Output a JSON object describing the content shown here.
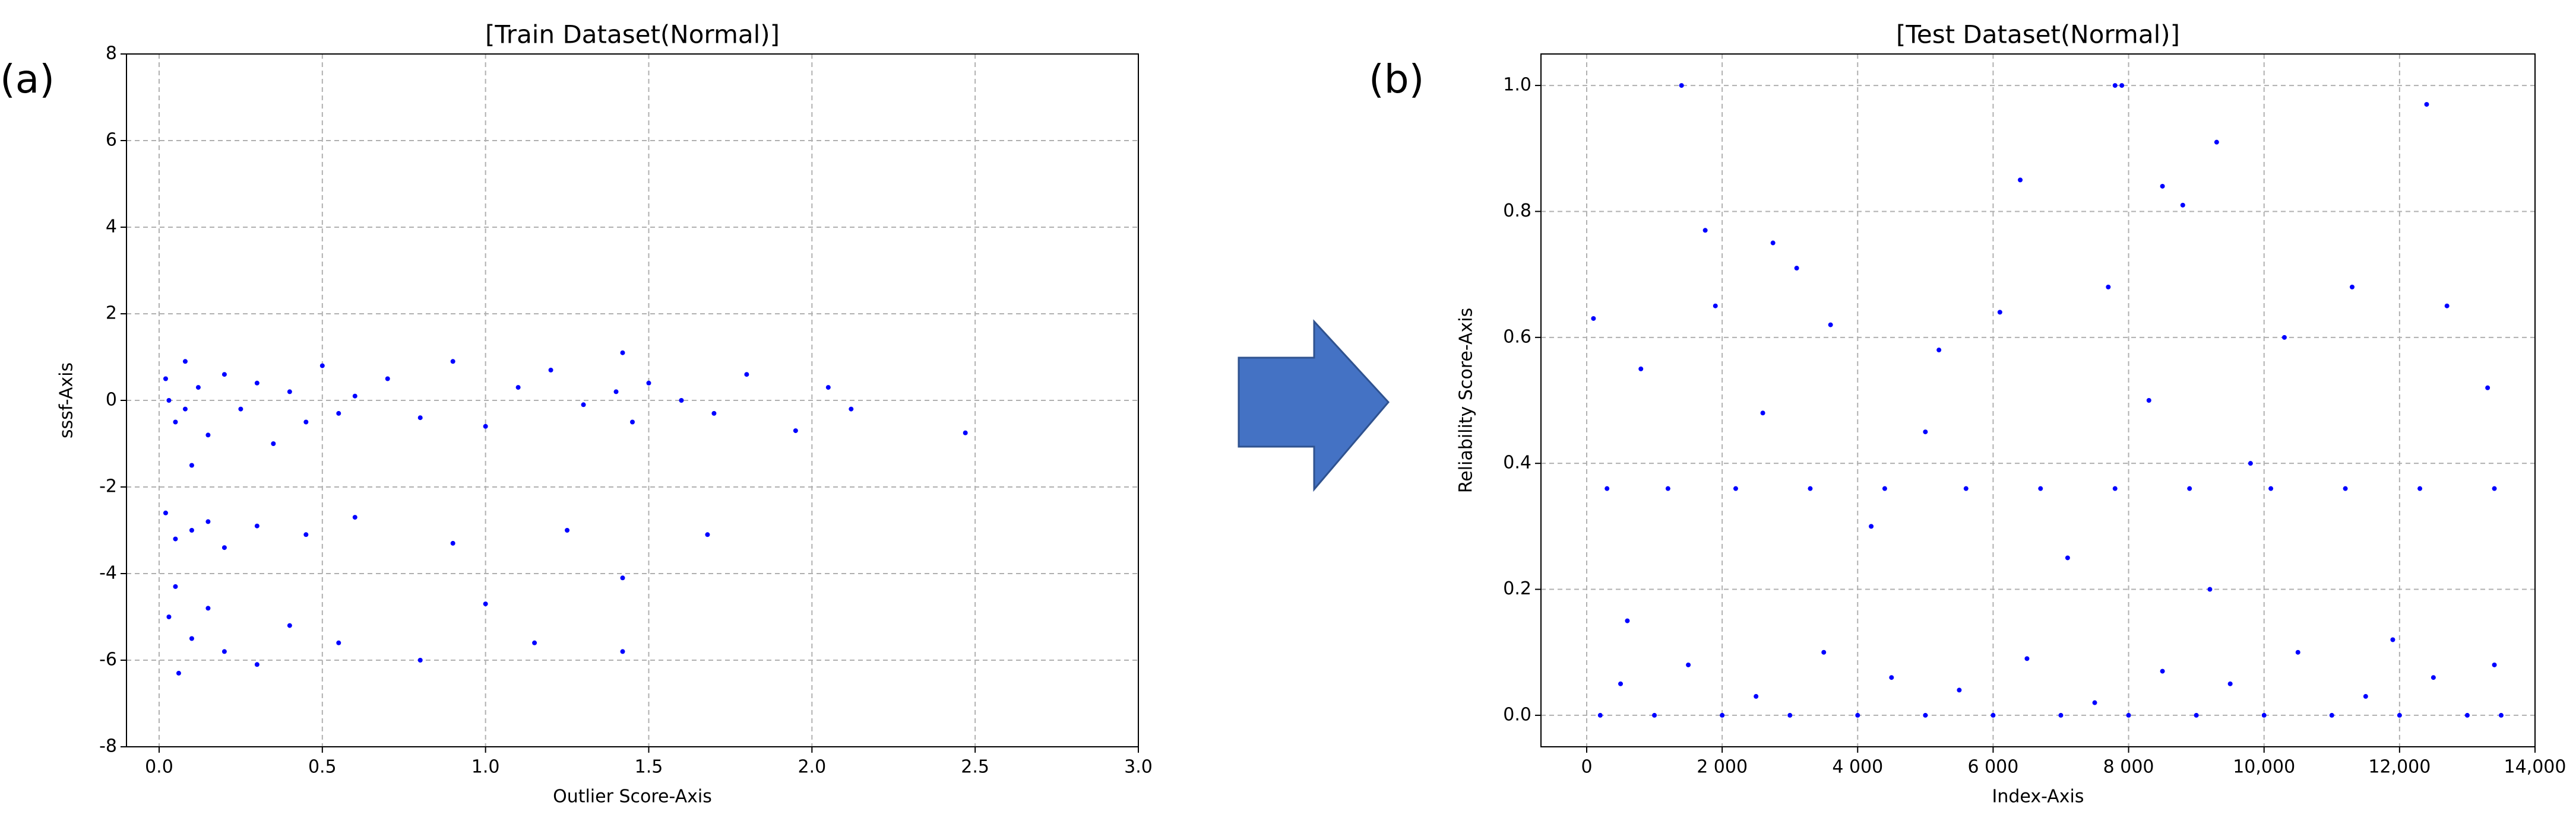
{
  "panel_labels": [
    "(a)",
    "(b)"
  ],
  "chart_data": [
    {
      "type": "scatter",
      "title": "[Train Dataset(Normal)]",
      "x_label": "Outlier Score-Axis",
      "y_label": "sssf-Axis",
      "color": "#0000ff",
      "grid": true,
      "xlim": [
        -0.1,
        3.0
      ],
      "ylim": [
        -8,
        8
      ],
      "xticks": [
        {
          "value": 0,
          "label": "0.0"
        },
        0.5,
        {
          "value": 1,
          "label": "1.0"
        },
        1.5,
        {
          "value": 2,
          "label": "2.0"
        },
        2.5,
        {
          "value": 3,
          "label": "3.0"
        }
      ],
      "yticks": [
        -8,
        -6,
        -4,
        -2,
        0,
        2,
        4,
        6,
        8
      ],
      "x": [
        0.02,
        0.05,
        0.08,
        0.1,
        0.03,
        0.12,
        0.15,
        0.2,
        0.25,
        0.3,
        0.35,
        0.4,
        0.45,
        0.5,
        0.55,
        0.6,
        0.7,
        0.8,
        0.9,
        1.0,
        1.1,
        1.2,
        1.3,
        1.4,
        1.42,
        1.45,
        1.5,
        1.6,
        1.7,
        1.8,
        1.95,
        2.05,
        2.12,
        2.47,
        0.02,
        0.05,
        0.1,
        0.15,
        0.2,
        0.3,
        0.45,
        0.6,
        0.9,
        1.25,
        1.42,
        1.68,
        0.03,
        0.06,
        0.1,
        0.15,
        0.2,
        0.3,
        0.4,
        0.55,
        0.8,
        1.0,
        1.15,
        1.42,
        0.05,
        0.08
      ],
      "values": [
        0.5,
        -0.5,
        0.9,
        -1.5,
        0.0,
        0.3,
        -0.8,
        0.6,
        -0.2,
        0.4,
        -1.0,
        0.2,
        -0.5,
        0.8,
        -0.3,
        0.1,
        0.5,
        -0.4,
        0.9,
        -0.6,
        0.3,
        0.7,
        -0.1,
        0.2,
        1.1,
        -0.5,
        0.4,
        0.0,
        -0.3,
        0.6,
        -0.7,
        0.3,
        -0.2,
        -0.75,
        -2.6,
        -3.2,
        -3.0,
        -2.8,
        -3.4,
        -2.9,
        -3.1,
        -2.7,
        -3.3,
        -3.0,
        -4.1,
        -3.1,
        -5.0,
        -6.3,
        -5.5,
        -4.8,
        -5.8,
        -6.1,
        -5.2,
        -5.6,
        -6.0,
        -4.7,
        -5.6,
        -5.8,
        -4.3,
        -0.2
      ]
    },
    {
      "type": "scatter",
      "title": "[Test Dataset(Normal)]",
      "x_label": "Index-Axis",
      "y_label": "Reliability Score-Axis",
      "color": "#0000ff",
      "grid": true,
      "xlim": [
        -675,
        14000
      ],
      "ylim": [
        -0.05,
        1.05
      ],
      "xticks": [
        0,
        {
          "value": 2000,
          "label": "2 000"
        },
        {
          "value": 4000,
          "label": "4 000"
        },
        {
          "value": 6000,
          "label": "6 000"
        },
        {
          "value": 8000,
          "label": "8 000"
        },
        {
          "value": 10000,
          "label": "10,000"
        },
        {
          "value": 12000,
          "label": "12,000"
        },
        {
          "value": 14000,
          "label": "14,000"
        }
      ],
      "yticks": [
        {
          "value": 0,
          "label": "0.0"
        },
        0.2,
        0.4,
        0.6,
        0.8,
        {
          "value": 1,
          "label": "1.0"
        }
      ],
      "x": [
        200,
        1000,
        2000,
        3000,
        4000,
        5000,
        6000,
        7000,
        8000,
        9000,
        10000,
        11000,
        12000,
        13000,
        13500,
        500,
        1500,
        2500,
        3500,
        4500,
        5500,
        6500,
        7500,
        8500,
        9500,
        10500,
        11500,
        12500,
        13400,
        300,
        1200,
        2200,
        3300,
        4400,
        5600,
        6700,
        7800,
        8900,
        10100,
        11200,
        12300,
        13400,
        100,
        800,
        1900,
        2600,
        3600,
        4200,
        5200,
        6100,
        7100,
        7700,
        8300,
        9200,
        10300,
        11300,
        12700,
        13300,
        600,
        5000,
        9800,
        11900,
        1400,
        7800,
        7900,
        12400,
        9300,
        6400,
        8500,
        8800,
        1750,
        2750,
        3100
      ],
      "values": [
        0,
        0,
        0,
        0,
        0,
        0,
        0,
        0,
        0,
        0,
        0,
        0,
        0,
        0,
        0,
        0.05,
        0.08,
        0.03,
        0.1,
        0.06,
        0.04,
        0.09,
        0.02,
        0.07,
        0.05,
        0.1,
        0.03,
        0.06,
        0.08,
        0.36,
        0.36,
        0.36,
        0.36,
        0.36,
        0.36,
        0.36,
        0.36,
        0.36,
        0.36,
        0.36,
        0.36,
        0.36,
        0.63,
        0.55,
        0.65,
        0.48,
        0.62,
        0.3,
        0.58,
        0.64,
        0.25,
        0.68,
        0.5,
        0.2,
        0.6,
        0.68,
        0.65,
        0.52,
        0.15,
        0.45,
        0.4,
        0.12,
        1.0,
        1.0,
        1.0,
        0.97,
        0.91,
        0.85,
        0.84,
        0.81,
        0.77,
        0.75,
        0.71
      ]
    }
  ]
}
